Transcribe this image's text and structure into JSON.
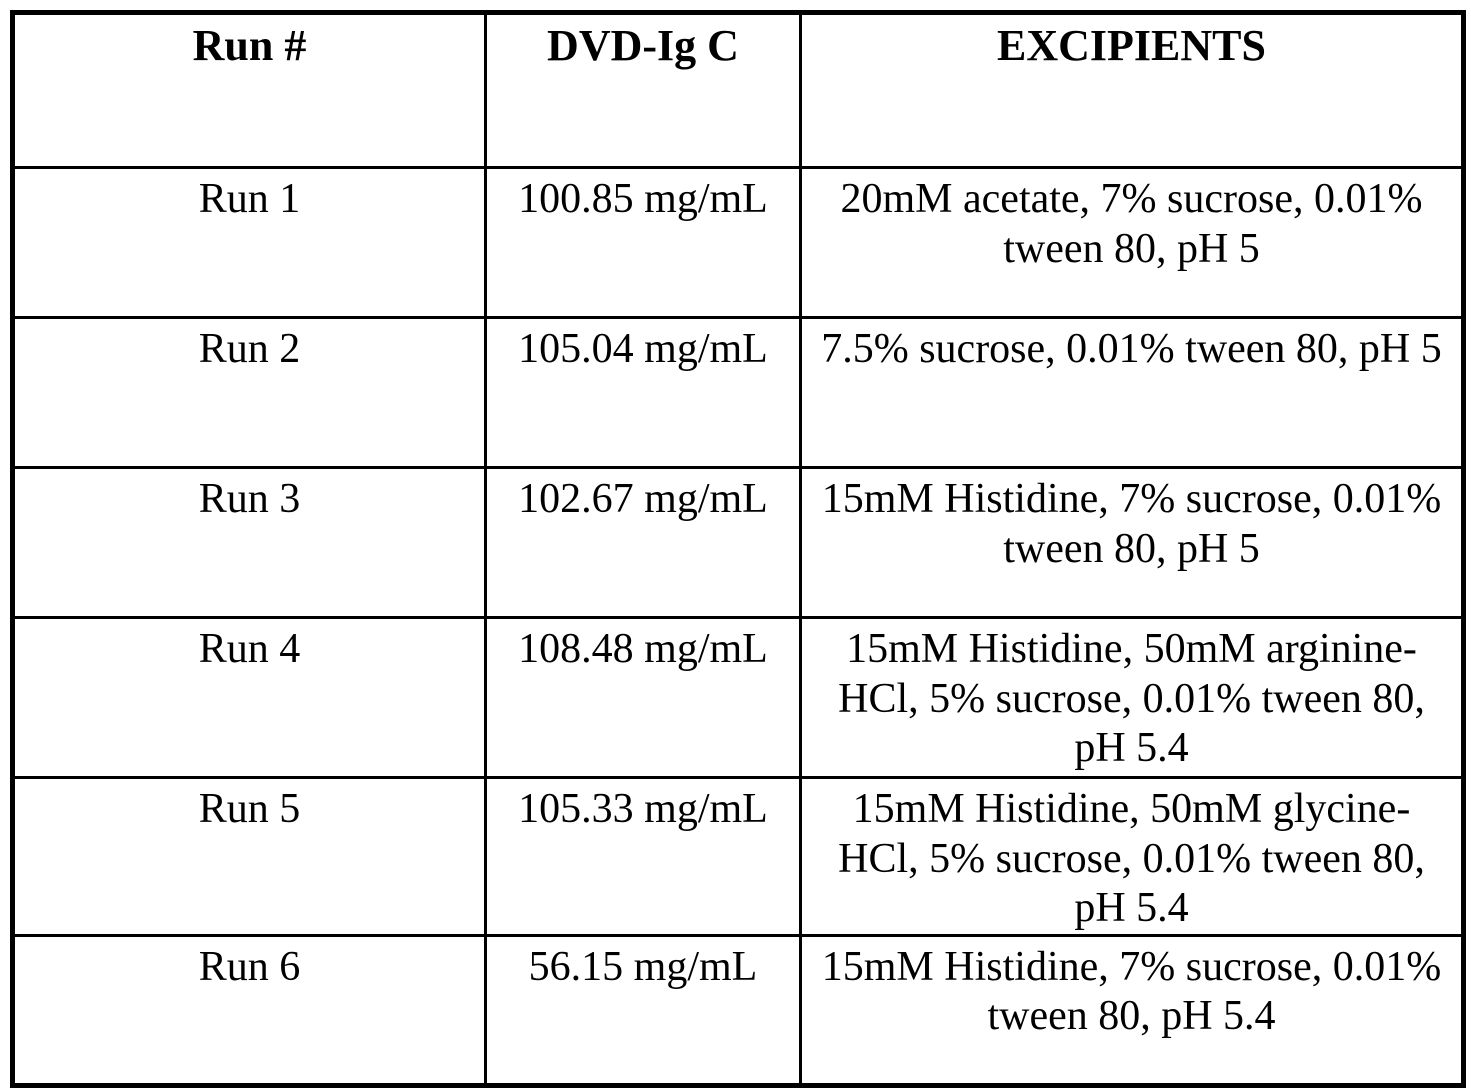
{
  "table": {
    "headers": {
      "run": "Run #",
      "concentration": "DVD-Ig C",
      "excipients": "EXCIPIENTS"
    },
    "rows": [
      {
        "run": "Run 1",
        "concentration": "100.85 mg/mL",
        "excipients": "20mM acetate, 7% sucrose, 0.01%\ntween 80, pH 5"
      },
      {
        "run": "Run 2",
        "concentration": "105.04 mg/mL",
        "excipients": "7.5% sucrose, 0.01% tween 80, pH 5"
      },
      {
        "run": "Run 3",
        "concentration": "102.67 mg/mL",
        "excipients": "15mM Histidine, 7% sucrose, 0.01%\ntween 80, pH 5"
      },
      {
        "run": "Run 4",
        "concentration": "108.48 mg/mL",
        "excipients": "15mM Histidine, 50mM arginine-\nHCl, 5% sucrose, 0.01% tween 80,\npH 5.4"
      },
      {
        "run": "Run 5",
        "concentration": "105.33 mg/mL",
        "excipients": "15mM Histidine, 50mM glycine-\nHCl, 5% sucrose, 0.01% tween 80,\npH 5.4"
      },
      {
        "run": "Run 6",
        "concentration": "56.15 mg/mL",
        "excipients": "15mM Histidine, 7% sucrose, 0.01%\ntween 80, pH 5.4"
      }
    ]
  },
  "colors": {
    "border": "#000000",
    "text": "#000000",
    "background": "#ffffff"
  }
}
